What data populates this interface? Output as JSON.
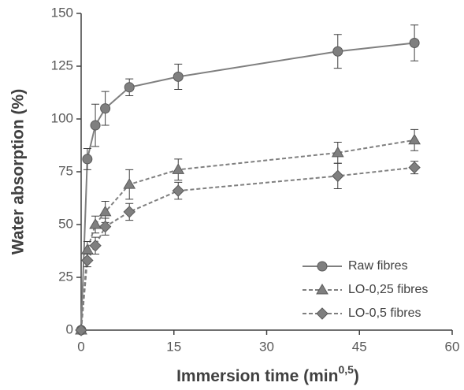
{
  "chart_data": {
    "type": "line",
    "x_label": [
      "Immersion time (min",
      "0,5",
      ")"
    ],
    "y_label": "Water absorption (%)",
    "xlim": [
      0,
      60
    ],
    "xticks": [
      0,
      15,
      30,
      45,
      60
    ],
    "ylim": [
      0,
      150
    ],
    "yticks": [
      0,
      25,
      50,
      75,
      100,
      125,
      150
    ],
    "legend": "lower right",
    "series": [
      {
        "name": "Raw fibres",
        "color": "#7f7f7f",
        "marker": "circle",
        "dashed": false,
        "x": [
          0,
          1,
          2.3,
          3.9,
          7.8,
          15.7,
          41.5,
          53.9
        ],
        "values": [
          0,
          81,
          97,
          105,
          115,
          120,
          132,
          136
        ],
        "errors": [
          0,
          5,
          10,
          8,
          4,
          6,
          8,
          8.5
        ]
      },
      {
        "name": "LO-0,25 fibres",
        "color": "#7f7f7f",
        "marker": "triangle",
        "dashed": true,
        "x": [
          0,
          1,
          2.3,
          3.9,
          7.8,
          15.7,
          41.5,
          53.9
        ],
        "values": [
          0,
          38,
          50,
          56,
          69,
          76,
          84,
          90
        ],
        "errors": [
          0,
          4,
          4,
          5,
          7,
          5,
          5,
          5
        ]
      },
      {
        "name": "LO-0,5 fibres",
        "color": "#7f7f7f",
        "marker": "diamond",
        "dashed": true,
        "x": [
          0,
          1,
          2.3,
          3.9,
          7.8,
          15.7,
          41.5,
          53.9
        ],
        "values": [
          0,
          33,
          40,
          49,
          56,
          66,
          73,
          77
        ],
        "errors": [
          0,
          3,
          4,
          4,
          4,
          4,
          6,
          3
        ]
      }
    ]
  }
}
